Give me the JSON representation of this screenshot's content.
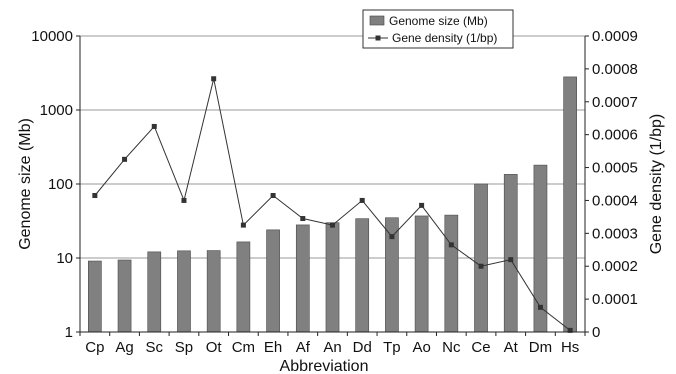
{
  "chart_data": {
    "type": "bar",
    "categories": [
      "Cp",
      "Ag",
      "Sc",
      "Sp",
      "Ot",
      "Cm",
      "Eh",
      "Af",
      "An",
      "Dd",
      "Tp",
      "Ao",
      "Nc",
      "Ce",
      "At",
      "Dm",
      "Hs"
    ],
    "series": [
      {
        "name": "Genome size (Mb)",
        "type": "bar",
        "axis": "left",
        "color": "#808080",
        "values": [
          9.1,
          9.4,
          12.1,
          12.5,
          12.6,
          16.5,
          24,
          28,
          30,
          34,
          35,
          37,
          38,
          100,
          135,
          180,
          2800
        ]
      },
      {
        "name": "Gene density (1/bp)",
        "type": "line",
        "axis": "right",
        "color": "#333333",
        "marker": "square",
        "values": [
          0.000415,
          0.000525,
          0.000625,
          0.0004,
          0.00077,
          0.000325,
          0.000415,
          0.000345,
          0.000325,
          0.0004,
          0.00029,
          0.000385,
          0.000265,
          0.0002,
          0.00022,
          7.5e-05,
          5e-06
        ]
      }
    ],
    "xlabel": "Abbreviation",
    "ylabel": "Genome size (Mb)",
    "y2label": "Gene density (1/bp)",
    "y_scale": "log",
    "ylim": [
      1,
      10000
    ],
    "yticks": [
      "1",
      "10",
      "100",
      "1000",
      "10000"
    ],
    "y2lim": [
      0,
      0.0009
    ],
    "y2ticks": [
      "0",
      "0.0001",
      "0.0002",
      "0.0003",
      "0.0004",
      "0.0005",
      "0.0006",
      "0.0007",
      "0.0008",
      "0.0009"
    ],
    "grid": "horizontal",
    "legend": "top-right"
  }
}
